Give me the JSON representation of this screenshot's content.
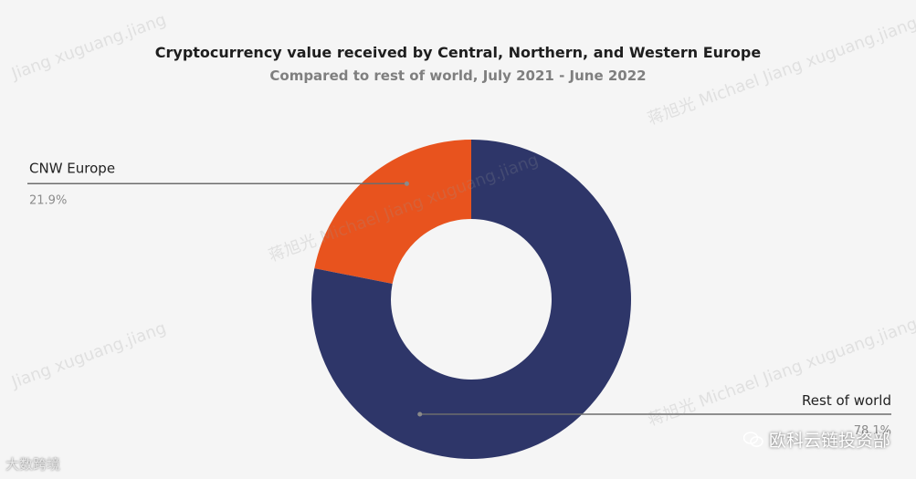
{
  "chart_data": {
    "type": "pie",
    "donut": true,
    "title": "Cryptocurrency value received by Central, Northern, and Western Europe",
    "subtitle": "Compared to rest of world, July 2021 - June 2022",
    "slices": [
      {
        "label": "CNW Europe",
        "value": 21.9,
        "display": "21.9%",
        "color": "#e8531e"
      },
      {
        "label": "Rest of world",
        "value": 78.1,
        "display": "78.1%",
        "color": "#2e3669"
      }
    ]
  },
  "watermarks": {
    "latin": "Jiang xuguang.jiang",
    "cn": "蒋旭光 Michael Jiang xuguang.jiang"
  },
  "footer": {
    "left": "大数跨境",
    "right": "欧科云链投资部"
  }
}
